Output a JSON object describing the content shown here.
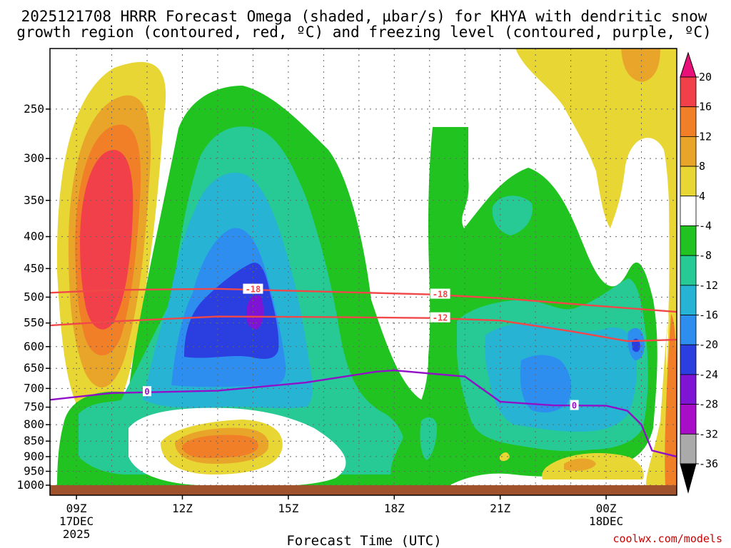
{
  "chart_data": {
    "type": "heatmap",
    "title_lines": [
      "2025121708 HRRR Forecast Omega (shaded, µbar/s) for KHYA with dendritic snow",
      "growth region (contoured, red, ºC) and freezing level (contoured, purple, ºC)"
    ],
    "xlabel": "Forecast Time (UTC)",
    "credit": "coolwx.com/models",
    "x_ticks": [
      {
        "label": "09Z",
        "sub": [
          "17DEC",
          "2025"
        ],
        "hour": 9
      },
      {
        "label": "12Z",
        "sub": [],
        "hour": 12
      },
      {
        "label": "15Z",
        "sub": [],
        "hour": 15
      },
      {
        "label": "18Z",
        "sub": [],
        "hour": 18
      },
      {
        "label": "21Z",
        "sub": [],
        "hour": 21
      },
      {
        "label": "00Z",
        "sub": [
          "18DEC"
        ],
        "hour": 24
      }
    ],
    "xlim_hours": [
      8.25,
      26.0
    ],
    "y_ticks": [
      "250",
      "300",
      "350",
      "400",
      "450",
      "500",
      "550",
      "600",
      "650",
      "700",
      "750",
      "800",
      "850",
      "900",
      "950",
      "1000"
    ],
    "ylim_hPa": [
      200,
      1000
    ],
    "colorbar": {
      "ticks": [
        "20",
        "16",
        "12",
        "8",
        "4",
        "-4",
        "-8",
        "-12",
        "-16",
        "-20",
        "-24",
        "-28",
        "-32",
        "-36"
      ],
      "colors": [
        "#e8117a",
        "#f2404a",
        "#f07f28",
        "#e8a52a",
        "#e8d634",
        "#ffffff",
        "#21c321",
        "#27c995",
        "#27b3d4",
        "#2d8ef0",
        "#2b3fe0",
        "#7f14d4",
        "#a80ec8",
        "#aaaaaa",
        "#000000"
      ]
    },
    "contours": {
      "dendritic": [
        {
          "level": "-18",
          "color": "#f04848",
          "points": [
            [
              8.25,
              492
            ],
            [
              10,
              487
            ],
            [
              13,
              485
            ],
            [
              16,
              490
            ],
            [
              19,
              495
            ],
            [
              21,
              502
            ],
            [
              23.5,
              515
            ],
            [
              26,
              528
            ]
          ]
        },
        {
          "level": "-12",
          "color": "#f04848",
          "points": [
            [
              8.25,
              555
            ],
            [
              10,
              547
            ],
            [
              13,
              537
            ],
            [
              16,
              538
            ],
            [
              19,
              540
            ],
            [
              21,
              545
            ],
            [
              23,
              567
            ],
            [
              24.6,
              588
            ],
            [
              26,
              585
            ]
          ]
        }
      ],
      "freezing": [
        {
          "level": "0",
          "color": "#9010c8",
          "points": [
            [
              8.25,
              730
            ],
            [
              10,
              712
            ],
            [
              13,
              706
            ],
            [
              15.5,
              685
            ],
            [
              17.5,
              658
            ],
            [
              18,
              655
            ],
            [
              20,
              670
            ],
            [
              21,
              735
            ],
            [
              22.5,
              745
            ],
            [
              24,
              746
            ],
            [
              24.6,
              760
            ],
            [
              25,
              800
            ],
            [
              25.3,
              880
            ],
            [
              26,
              900
            ]
          ]
        }
      ]
    },
    "omega_features": [
      {
        "sign": "up-high",
        "levels": [
          "4",
          "8",
          "12",
          "16",
          "20"
        ],
        "colors": [
          "#e8d634",
          "#e8a52a",
          "#f07f28",
          "#f2404a",
          "#f2404a"
        ],
        "center": [
          9.5,
          420
        ],
        "note": "rising"
      },
      {
        "sign": "up-low",
        "levels": [
          "4",
          "8",
          "12"
        ],
        "center": [
          14,
          888
        ]
      },
      {
        "sign": "down",
        "levels": [
          "-4",
          "-8",
          "-12",
          "-16",
          "-20",
          "-24"
        ],
        "center": [
          14,
          470
        ]
      },
      {
        "sign": "down",
        "levels": [
          "-4",
          "-8",
          "-12",
          "-16",
          "-20"
        ],
        "center": [
          22,
          620
        ]
      }
    ]
  }
}
